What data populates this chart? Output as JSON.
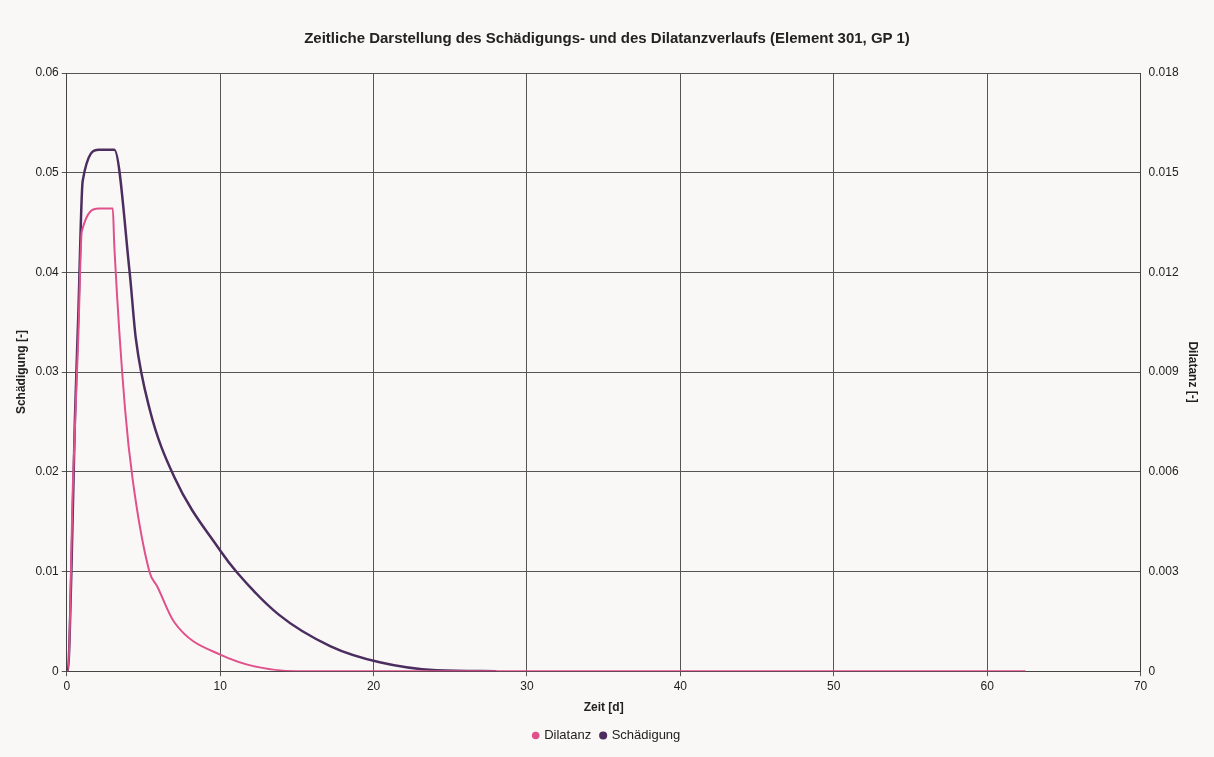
{
  "chart_data": {
    "type": "line",
    "title": "Zeitliche Darstellung des Schädigungs- und des Dilatanzverlaufs (Element 301, GP 1)",
    "xlabel": "Zeit [d]",
    "ylabel": "Schädigung [-]",
    "y2label": "Dilatanz [-]",
    "series": [
      {
        "name": "Schädigung",
        "color": "#4b2d5f",
        "x": [
          0,
          0.07,
          0.3,
          0.53,
          0.75,
          1.04,
          2.1,
          3.1,
          4.1,
          4.5,
          5.4,
          7.0,
          10.0,
          11.1,
          13.8,
          17.2,
          20.4,
          24.1,
          28
        ],
        "values": [
          0,
          0,
          0.0099,
          0.0252,
          0.0356,
          0.0492,
          0.0523,
          0.0523,
          0.04,
          0.0334,
          0.0263,
          0.0195,
          0.0121,
          0.0099,
          0.0057,
          0.0025,
          0.0009,
          0.0001,
          0
        ]
      },
      {
        "name": "Dilatanz",
        "color": "#e0508a",
        "axis": "y2",
        "x": [
          0,
          0.07,
          0.41,
          0.75,
          0.98,
          2.1,
          3.0,
          3.1,
          3.8,
          4.3,
          5.4,
          5.9,
          7.0,
          10.0,
          15,
          20,
          62.5
        ],
        "values": [
          0,
          0,
          0.00576,
          0.01003,
          0.01323,
          0.01392,
          0.01392,
          0.0128,
          0.00789,
          0.00576,
          0.00298,
          0.00255,
          0.00148,
          0.0005,
          0,
          0,
          0
        ]
      }
    ],
    "xlim": [
      0,
      70
    ],
    "xticks": [
      0,
      10,
      20,
      30,
      40,
      50,
      60,
      70
    ],
    "ylim": [
      0,
      0.06
    ],
    "yticks": [
      0,
      0.01,
      0.02,
      0.03,
      0.04,
      0.05,
      0.06
    ],
    "y2lim": [
      0,
      0.018
    ],
    "y2ticks": [
      0,
      0.003,
      0.006,
      0.009,
      0.012,
      0.015,
      0.018
    ],
    "grid": true,
    "legend": "bottom",
    "marker": "none",
    "line_style": "solid"
  }
}
